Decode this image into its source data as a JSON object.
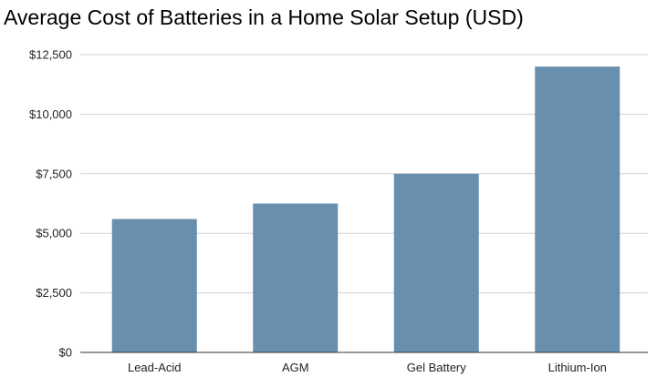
{
  "chart_data": {
    "type": "bar",
    "title": "Average Cost of Batteries in a Home Solar Setup (USD)",
    "xlabel": "",
    "ylabel": "",
    "categories": [
      "Lead-Acid",
      "AGM",
      "Gel Battery",
      "Lithium-Ion"
    ],
    "values": [
      5600,
      6250,
      7500,
      12000
    ],
    "ylim": [
      0,
      12500
    ],
    "yticks": [
      0,
      2500,
      5000,
      7500,
      10000,
      12500
    ],
    "ytick_labels": [
      "$0",
      "$2,500",
      "$5,000",
      "$7,500",
      "$10,000",
      "$12,500"
    ],
    "bar_color": "#688FAD",
    "grid": true,
    "legend": "none"
  }
}
